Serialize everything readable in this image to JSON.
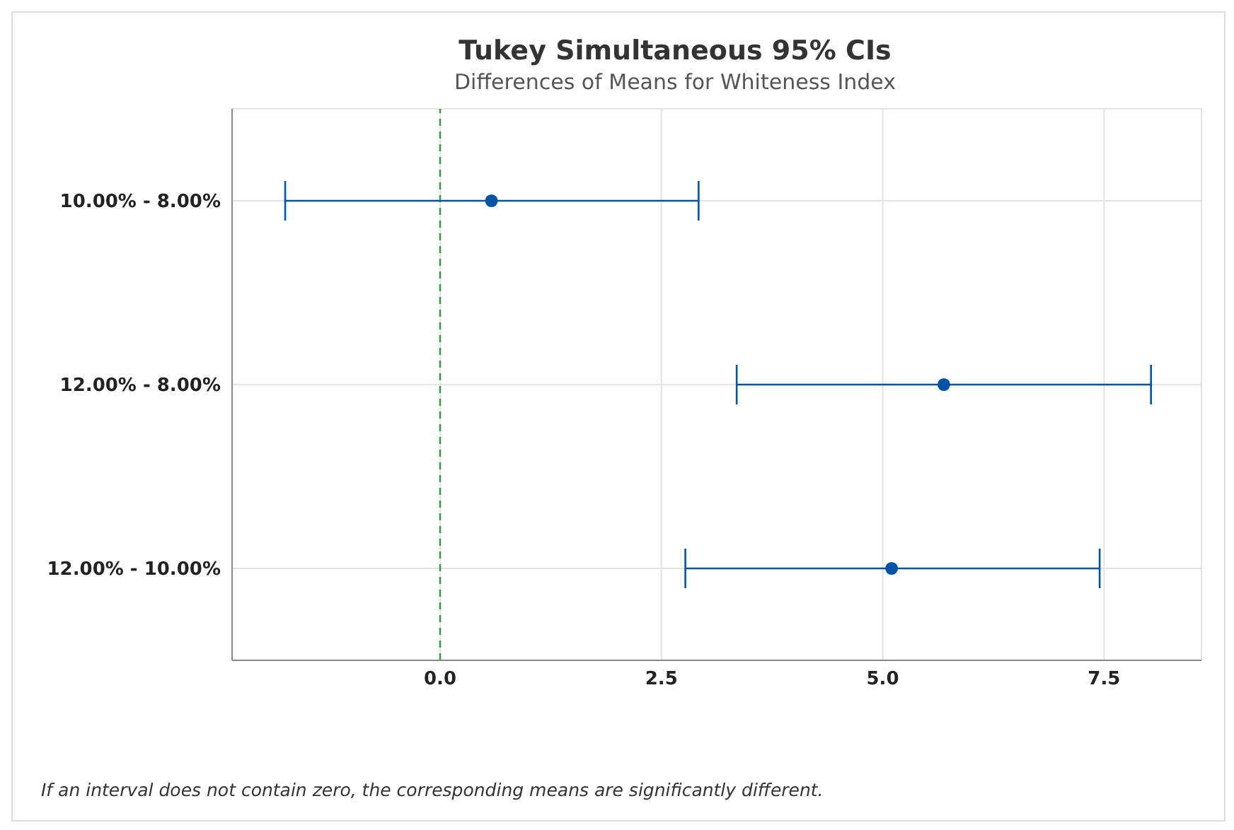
{
  "chart_data": {
    "type": "scatter",
    "orientation": "horizontal",
    "title": "Tukey Simultaneous 95% CIs",
    "subtitle": "Differences of Means for Whiteness Index",
    "categories": [
      "10.00% - 8.00%",
      "12.00% - 8.00%",
      "12.00% - 10.00%"
    ],
    "values": [
      0.58,
      5.69,
      5.1
    ],
    "errors": [
      [
        -1.75,
        2.92
      ],
      [
        3.35,
        8.03
      ],
      [
        2.77,
        7.45
      ]
    ],
    "color": "#0054a6",
    "marker": "circle",
    "xlim": [
      -2.35,
      8.6
    ],
    "xticks": [
      {
        "value": 0,
        "label": "0.0"
      },
      {
        "value": 2.5,
        "label": "2.5"
      },
      {
        "value": 5,
        "label": "5.0"
      },
      {
        "value": 7.5,
        "label": "7.5"
      }
    ],
    "ref_lines": [
      {
        "axis": "x",
        "value": 0,
        "color": "#3a9a4a",
        "line_style": "dashed"
      }
    ],
    "grid": true,
    "annotations": [
      "If an interval does not contain zero, the corresponding means are significantly different."
    ]
  }
}
